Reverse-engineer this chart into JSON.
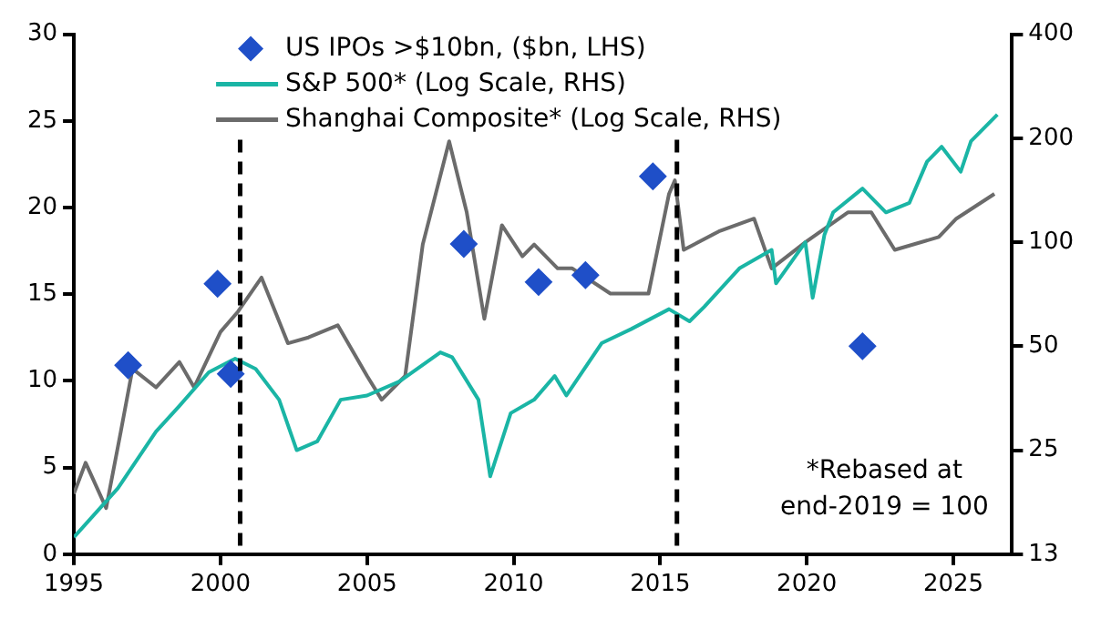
{
  "chart_data": {
    "type": "line",
    "xlim": [
      1995,
      2027
    ],
    "xticks": [
      1995,
      2000,
      2005,
      2010,
      2015,
      2020,
      2025
    ],
    "ylim": [
      0,
      30
    ],
    "yticks": [
      0,
      5,
      10,
      15,
      20,
      25,
      30
    ],
    "y2lim": [
      12.5,
      400
    ],
    "y2ticks": [
      {
        "value": 12.5,
        "label": "13"
      },
      25,
      50,
      100,
      200,
      400
    ],
    "log": "y2",
    "grid": false,
    "legend": "top",
    "series": [
      {
        "name": "US IPOs >$10bn, ($bn, LHS)",
        "type": "scatter",
        "marker": "diamond",
        "color": "#1f4fc8",
        "x": [
          1996.85,
          1999.9,
          2000.35,
          2008.3,
          2010.85,
          2012.45,
          2014.75,
          2021.9
        ],
        "values": [
          10.9,
          15.6,
          10.4,
          17.9,
          15.7,
          16.1,
          21.8,
          12.0
        ]
      },
      {
        "name": "S&P 500* (Log Scale, RHS)",
        "type": "line",
        "axis": "y2",
        "color": "#1ab5a5",
        "x": [
          1995,
          1996.5,
          1997.8,
          1998.6,
          1999.6,
          2000.5,
          2001.2,
          2002.0,
          2002.6,
          2003.3,
          2004.1,
          2005.0,
          2006.1,
          2007.5,
          2007.9,
          2008.8,
          2009.2,
          2009.9,
          2010.7,
          2011.4,
          2011.8,
          2013,
          2014,
          2015.3,
          2016.0,
          2016.5,
          2017.7,
          2018.8,
          2018.95,
          2019.95,
          2020.2,
          2020.6,
          2020.9,
          2021.9,
          2022.7,
          2023.5,
          2024.1,
          2024.6,
          2025.25,
          2025.6,
          2026.5
        ],
        "values": [
          14.0,
          19.4,
          28.3,
          33.6,
          42,
          46,
          43,
          35,
          25,
          26.5,
          35,
          36,
          39.5,
          48,
          46.5,
          35,
          21,
          32,
          35,
          41,
          36,
          51,
          56,
          64,
          59,
          65,
          84,
          95,
          76,
          100,
          69,
          105,
          122,
          143,
          122,
          130,
          171,
          189,
          160,
          196,
          234
        ]
      },
      {
        "name": "Shanghai Composite* (Log Scale, RHS)",
        "type": "line",
        "axis": "y2",
        "color": "#6b6b6b",
        "x": [
          1995,
          1995.4,
          1996.1,
          1996.6,
          1997,
          1997.8,
          1998.6,
          1999.1,
          2000,
          2000.6,
          2001.4,
          2002.3,
          2003,
          2004,
          2005,
          2005.5,
          2006.3,
          2006.9,
          2007.8,
          2008.4,
          2009,
          2009.6,
          2010.3,
          2010.7,
          2011.5,
          2012,
          2013.3,
          2014.6,
          2015.3,
          2015.5,
          2015.8,
          2017,
          2018.2,
          2018.8,
          2019.95,
          2021.4,
          2022.2,
          2023,
          2024.5,
          2025.1,
          2026.4
        ],
        "values": [
          18.7,
          23,
          17,
          28.3,
          43,
          38,
          45,
          38,
          55,
          63,
          79,
          51,
          53,
          57.5,
          41,
          35,
          41,
          98.5,
          196,
          122,
          60,
          112,
          91,
          98.5,
          84,
          84,
          71,
          71,
          138,
          151,
          95,
          107.5,
          117,
          84,
          100,
          122,
          122,
          95,
          103.5,
          117,
          138
        ]
      }
    ],
    "ref_lines": [
      {
        "axis": "x",
        "value": 2000.67,
        "color": "#000000",
        "line_style": "dashed"
      },
      {
        "axis": "x",
        "value": 2015.57,
        "color": "#000000",
        "line_style": "dashed"
      }
    ],
    "annotations": [
      "*Rebased at end-2019 = 100"
    ]
  }
}
